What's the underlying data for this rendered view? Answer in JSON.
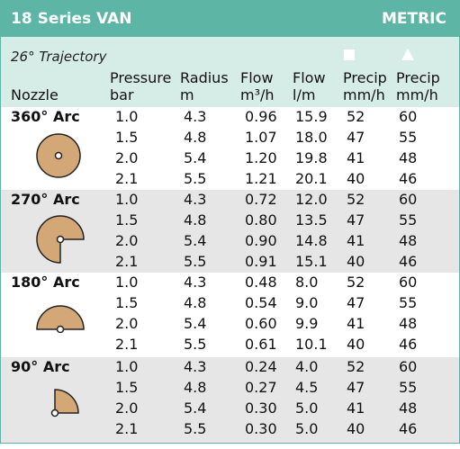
{
  "header": {
    "title": "18 Series VAN",
    "unit_system": "METRIC"
  },
  "subheader": {
    "trajectory": "26° Trajectory"
  },
  "columns": [
    {
      "line1": "",
      "line2": "Nozzle"
    },
    {
      "line1": "Pressure",
      "line2": "bar"
    },
    {
      "line1": "Radius",
      "line2": "m"
    },
    {
      "line1": "Flow",
      "line2": "m³/h"
    },
    {
      "line1": "Flow",
      "line2": "l/m"
    },
    {
      "line1": "Precip",
      "line2": "mm/h"
    },
    {
      "line1": "Precip",
      "line2": "mm/h"
    }
  ],
  "groups": [
    {
      "nozzle": "360° Arc",
      "rows": [
        [
          "1.0",
          "4.3",
          "0.96",
          "15.9",
          "52",
          "60"
        ],
        [
          "1.5",
          "4.8",
          "1.07",
          "18.0",
          "47",
          "55"
        ],
        [
          "2.0",
          "5.4",
          "1.20",
          "19.8",
          "41",
          "48"
        ],
        [
          "2.1",
          "5.5",
          "1.21",
          "20.1",
          "40",
          "46"
        ]
      ]
    },
    {
      "nozzle": "270° Arc",
      "rows": [
        [
          "1.0",
          "4.3",
          "0.72",
          "12.0",
          "52",
          "60"
        ],
        [
          "1.5",
          "4.8",
          "0.80",
          "13.5",
          "47",
          "55"
        ],
        [
          "2.0",
          "5.4",
          "0.90",
          "14.8",
          "41",
          "48"
        ],
        [
          "2.1",
          "5.5",
          "0.91",
          "15.1",
          "40",
          "46"
        ]
      ]
    },
    {
      "nozzle": "180° Arc",
      "rows": [
        [
          "1.0",
          "4.3",
          "0.48",
          "8.0",
          "52",
          "60"
        ],
        [
          "1.5",
          "4.8",
          "0.54",
          "9.0",
          "47",
          "55"
        ],
        [
          "2.0",
          "5.4",
          "0.60",
          "9.9",
          "41",
          "48"
        ],
        [
          "2.1",
          "5.5",
          "0.61",
          "10.1",
          "40",
          "46"
        ]
      ]
    },
    {
      "nozzle": "90° Arc",
      "rows": [
        [
          "1.0",
          "4.3",
          "0.24",
          "4.0",
          "52",
          "60"
        ],
        [
          "1.5",
          "4.8",
          "0.27",
          "4.5",
          "47",
          "55"
        ],
        [
          "2.0",
          "5.4",
          "0.30",
          "5.0",
          "41",
          "48"
        ],
        [
          "2.1",
          "5.5",
          "0.30",
          "5.0",
          "40",
          "46"
        ]
      ]
    }
  ]
}
